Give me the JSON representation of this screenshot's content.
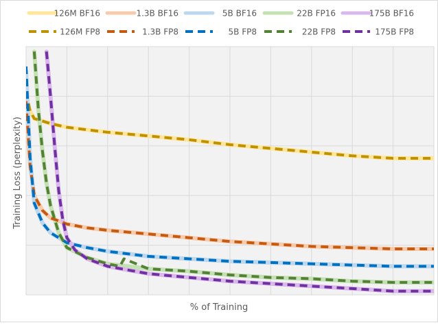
{
  "chart_data": {
    "type": "line",
    "title": "",
    "xlabel": "% of Training",
    "ylabel": "Training Loss (perplexity)",
    "xlim": [
      0,
      100
    ],
    "ylim": [
      0,
      100
    ],
    "x_tick_labels_shown": false,
    "y_tick_labels_shown": false,
    "grid": true,
    "legend_position": "top",
    "series": [
      {
        "name": "126M BF16",
        "color": "#FFE699",
        "dash": "solid",
        "x": [
          0,
          1,
          2,
          4,
          6,
          10,
          15,
          20,
          30,
          40,
          50,
          60,
          70,
          80,
          90,
          100
        ],
        "y": [
          78,
          74,
          71,
          70,
          69,
          67.5,
          66.5,
          65.5,
          64,
          62.5,
          60.5,
          59,
          57.5,
          56,
          55,
          55
        ]
      },
      {
        "name": "1.3B BF16",
        "color": "#F8CBAD",
        "dash": "solid",
        "x": [
          0,
          1,
          2,
          4,
          6,
          10,
          15,
          20,
          30,
          40,
          50,
          60,
          70,
          80,
          90,
          100
        ],
        "y": [
          74,
          52,
          40,
          34,
          31,
          28.5,
          27,
          26,
          24.5,
          23,
          21.5,
          20.5,
          19.5,
          19,
          18.5,
          18.5
        ]
      },
      {
        "name": "5B BF16",
        "color": "#BDD7EE",
        "dash": "solid",
        "x": [
          0,
          1,
          2,
          4,
          6,
          10,
          15,
          20,
          30,
          40,
          50,
          60,
          70,
          80,
          90,
          100
        ],
        "y": [
          90,
          55,
          37,
          29,
          25,
          21,
          19,
          17.5,
          15.5,
          14.5,
          13.5,
          13,
          12.5,
          12,
          11.5,
          11.5
        ]
      },
      {
        "name": "22B FP16",
        "color": "#C5E0B4",
        "dash": "solid",
        "x": [
          2,
          3,
          4,
          5,
          6,
          8,
          10,
          15,
          20,
          30,
          40,
          50,
          60,
          70,
          80,
          90,
          100
        ],
        "y": [
          98,
          75,
          58,
          45,
          36,
          25,
          19,
          15,
          12.5,
          10.5,
          9.5,
          8,
          7,
          6.5,
          5.5,
          5,
          5
        ]
      },
      {
        "name": "175B BF16",
        "color": "#D9B8EB",
        "dash": "solid",
        "x": [
          5,
          6,
          7,
          8,
          9,
          10,
          12,
          15,
          20,
          30,
          40,
          50,
          60,
          70,
          80,
          90,
          100
        ],
        "y": [
          98,
          80,
          60,
          42,
          30,
          23,
          18,
          14.5,
          11.5,
          8.5,
          7,
          5.5,
          4.5,
          3.5,
          2.5,
          1.5,
          1.5
        ]
      },
      {
        "name": "126M FP8",
        "color": "#BF9000",
        "dash": "dashed",
        "x": [
          0,
          1,
          2,
          4,
          6,
          10,
          15,
          20,
          30,
          40,
          50,
          60,
          70,
          80,
          90,
          100
        ],
        "y": [
          82,
          74,
          71,
          70,
          69,
          67.5,
          66.5,
          65.5,
          64,
          62.5,
          60.5,
          59,
          57.5,
          56,
          55,
          55
        ]
      },
      {
        "name": "1.3B FP8",
        "color": "#C55A11",
        "dash": "dashed",
        "x": [
          0,
          1,
          2,
          4,
          6,
          10,
          15,
          20,
          30,
          40,
          50,
          60,
          70,
          80,
          90,
          100
        ],
        "y": [
          78,
          52,
          40,
          34,
          31,
          28.5,
          27,
          26,
          24.5,
          23,
          21.5,
          20.5,
          19.5,
          19,
          18.5,
          18.5
        ]
      },
      {
        "name": "5B FP8",
        "color": "#0070C0",
        "dash": "dashed",
        "x": [
          0,
          1,
          2,
          4,
          6,
          10,
          15,
          20,
          30,
          40,
          50,
          60,
          70,
          80,
          90,
          100
        ],
        "y": [
          92,
          55,
          37,
          29,
          25,
          21,
          19,
          17.5,
          15.5,
          14.5,
          13.5,
          13,
          12.5,
          12,
          11.5,
          11.5
        ]
      },
      {
        "name": "22B FP8",
        "color": "#548235",
        "dash": "dashed",
        "x": [
          2,
          3,
          4,
          5,
          6,
          8,
          9,
          10,
          15,
          20,
          23,
          24,
          30,
          40,
          50,
          60,
          70,
          80,
          90,
          100
        ],
        "y": [
          98,
          75,
          58,
          45,
          36,
          25,
          22,
          19,
          15,
          12.5,
          11.5,
          14.5,
          10.5,
          9.5,
          8,
          7,
          6.5,
          5.5,
          5,
          5
        ]
      },
      {
        "name": "175B FP8",
        "color": "#7030A0",
        "dash": "dashed",
        "x": [
          5,
          6,
          7,
          8,
          9,
          10,
          12,
          15,
          20,
          30,
          40,
          50,
          60,
          70,
          80,
          90,
          100
        ],
        "y": [
          98,
          80,
          60,
          42,
          30,
          23,
          18,
          14.5,
          11.5,
          8.5,
          7,
          5.5,
          4.5,
          3.5,
          2.5,
          1.5,
          1.5
        ]
      }
    ]
  }
}
